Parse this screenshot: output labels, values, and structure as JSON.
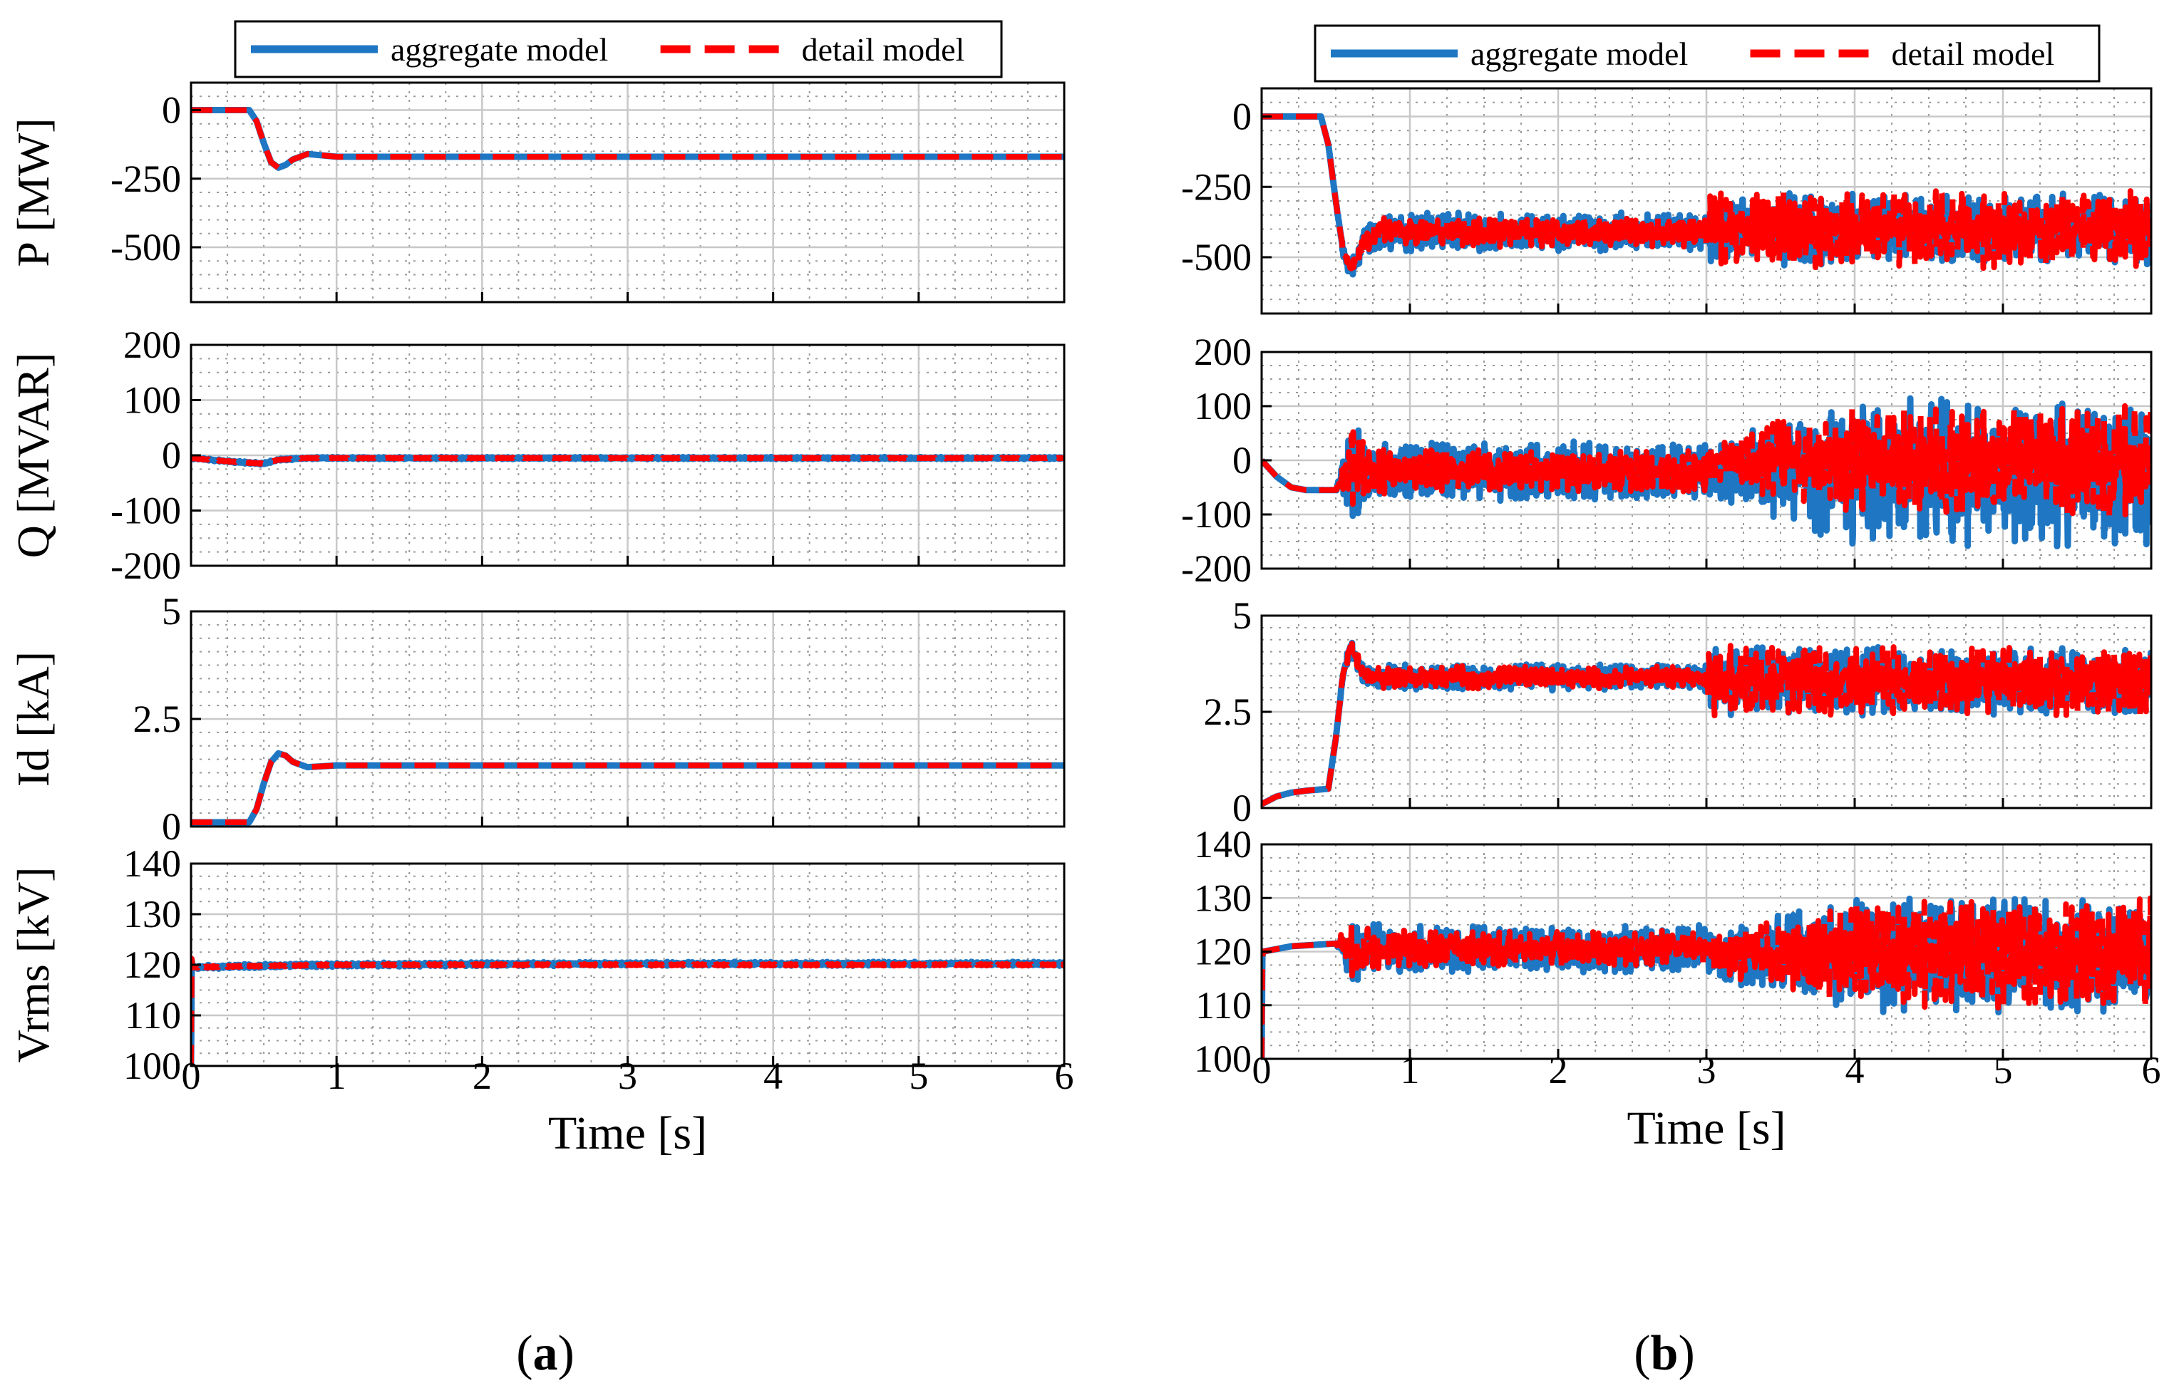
{
  "figure": {
    "panel_labels": [
      "(a)",
      "(b)"
    ],
    "panel_label_letters": [
      "a",
      "b"
    ],
    "colors": {
      "aggregate": "#1f77c4",
      "detail": "#ff0000",
      "grid_major": "#c8c8c8",
      "grid_minor": "#9a9a9a",
      "axis": "#000000"
    }
  },
  "chart_data": [
    {
      "id": "a",
      "type": "line",
      "legend": {
        "placement": "top",
        "entries": [
          "aggregate model",
          "detail model"
        ]
      },
      "xlabel": "Time [s]",
      "xlim": [
        0,
        6
      ],
      "xticks": [
        0,
        1,
        2,
        3,
        4,
        5,
        6
      ],
      "subplots": [
        {
          "ylabel": "P [MW]",
          "ylim": [
            -700,
            100
          ],
          "yticks": [
            0,
            -250,
            -500
          ],
          "ytick_labels": [
            "0",
            "-250",
            "-500"
          ],
          "series": [
            {
              "name": "aggregate model",
              "x": [
                0,
                0.4,
                0.45,
                0.5,
                0.55,
                0.6,
                0.65,
                0.7,
                0.8,
                0.9,
                1.0,
                1.5,
                3,
                4.5,
                6
              ],
              "y": [
                0,
                0,
                -40,
                -120,
                -190,
                -210,
                -200,
                -180,
                -160,
                -165,
                -170,
                -170,
                -170,
                -170,
                -170
              ],
              "noise": 0
            },
            {
              "name": "detail model",
              "x": [
                0,
                0.4,
                0.45,
                0.5,
                0.55,
                0.6,
                0.65,
                0.7,
                0.8,
                0.9,
                1.0,
                1.5,
                3,
                4.5,
                6
              ],
              "y": [
                0,
                0,
                -40,
                -120,
                -190,
                -210,
                -200,
                -180,
                -160,
                -165,
                -170,
                -170,
                -170,
                -170,
                -170
              ],
              "noise": 0
            }
          ]
        },
        {
          "ylabel": "Q [MVAR]",
          "ylim": [
            -200,
            200
          ],
          "yticks": [
            200,
            100,
            0,
            -100,
            -200
          ],
          "ytick_labels": [
            "200",
            "100",
            "0",
            "-100",
            "-200"
          ],
          "series": [
            {
              "name": "aggregate model",
              "x": [
                0,
                0.3,
                0.5,
                0.6,
                0.8,
                1.0,
                3,
                6
              ],
              "y": [
                -5,
                -12,
                -15,
                -8,
                -5,
                -5,
                -5,
                -5
              ],
              "noise": 2
            },
            {
              "name": "detail model",
              "x": [
                0,
                0.3,
                0.5,
                0.6,
                0.8,
                1.0,
                3,
                6
              ],
              "y": [
                -5,
                -12,
                -15,
                -8,
                -5,
                -5,
                -5,
                -5
              ],
              "noise": 1
            }
          ]
        },
        {
          "ylabel": "Id [kA]",
          "ylim": [
            0,
            5
          ],
          "yticks": [
            5,
            2.5,
            0
          ],
          "ytick_labels": [
            "5",
            "2.5",
            "0"
          ],
          "series": [
            {
              "name": "aggregate model",
              "x": [
                0,
                0.4,
                0.45,
                0.5,
                0.55,
                0.6,
                0.65,
                0.7,
                0.8,
                0.9,
                1.0,
                1.5,
                3,
                6
              ],
              "y": [
                0.1,
                0.1,
                0.4,
                1.0,
                1.5,
                1.7,
                1.65,
                1.5,
                1.38,
                1.4,
                1.42,
                1.42,
                1.42,
                1.42
              ],
              "noise": 0
            },
            {
              "name": "detail model",
              "x": [
                0,
                0.4,
                0.45,
                0.5,
                0.55,
                0.6,
                0.65,
                0.7,
                0.8,
                0.9,
                1.0,
                1.5,
                3,
                6
              ],
              "y": [
                0.1,
                0.1,
                0.4,
                1.0,
                1.5,
                1.7,
                1.65,
                1.5,
                1.38,
                1.4,
                1.42,
                1.42,
                1.42,
                1.42
              ],
              "noise": 0
            }
          ]
        },
        {
          "ylabel": "Vrms [kV]",
          "ylim": [
            100,
            140
          ],
          "yticks": [
            140,
            130,
            120,
            110,
            100
          ],
          "ytick_labels": [
            "140",
            "130",
            "120",
            "110",
            "100"
          ],
          "series": [
            {
              "name": "aggregate model",
              "x": [
                0,
                0.005,
                0.01,
                0.3,
                1.0,
                3,
                6
              ],
              "y": [
                100,
                121,
                119.5,
                119.7,
                120,
                120.2,
                120.2
              ],
              "noise": 0.4
            },
            {
              "name": "detail model",
              "x": [
                0,
                0.005,
                0.01,
                0.3,
                1.0,
                3,
                6
              ],
              "y": [
                100,
                121,
                119.5,
                119.7,
                120,
                120,
                120
              ],
              "noise": 0.2
            }
          ]
        }
      ]
    },
    {
      "id": "b",
      "type": "line",
      "legend": {
        "placement": "top",
        "entries": [
          "aggregate model",
          "detail model"
        ]
      },
      "xlabel": "Time [s]",
      "xlim": [
        0,
        6
      ],
      "xticks": [
        0,
        1,
        2,
        3,
        4,
        5,
        6
      ],
      "subplots": [
        {
          "ylabel": "",
          "ylim": [
            -700,
            100
          ],
          "yticks": [
            0,
            -250,
            -500
          ],
          "ytick_labels": [
            "0",
            "-250",
            "-500"
          ],
          "series": [
            {
              "name": "aggregate model",
              "x": [
                0,
                0.4,
                0.45,
                0.5,
                0.55,
                0.6,
                0.65,
                0.7,
                0.8,
                1.0,
                2,
                2.99,
                3.01,
                4,
                5,
                6
              ],
              "y": [
                0,
                0,
                -100,
                -300,
                -480,
                -550,
                -500,
                -430,
                -410,
                -410,
                -410,
                -410,
                -400,
                -400,
                -400,
                -400
              ],
              "noise": [
                0,
                0,
                0,
                0,
                20,
                30,
                40,
                55,
                70,
                70,
                70,
                70,
                130,
                130,
                130,
                130
              ]
            },
            {
              "name": "detail model",
              "x": [
                0,
                0.4,
                0.45,
                0.5,
                0.55,
                0.6,
                0.65,
                0.7,
                0.8,
                1.0,
                2,
                2.99,
                3.01,
                4,
                5,
                6
              ],
              "y": [
                0,
                0,
                -100,
                -300,
                -480,
                -540,
                -490,
                -430,
                -410,
                -410,
                -410,
                -410,
                -400,
                -400,
                -400,
                -400
              ],
              "noise": [
                0,
                0,
                0,
                0,
                15,
                25,
                35,
                45,
                55,
                55,
                55,
                55,
                140,
                140,
                140,
                140
              ]
            }
          ]
        },
        {
          "ylabel": "",
          "ylim": [
            -200,
            200
          ],
          "yticks": [
            200,
            100,
            0,
            -100,
            -200
          ],
          "ytick_labels": [
            "200",
            "100",
            "0",
            "-100",
            "-200"
          ],
          "series": [
            {
              "name": "aggregate model",
              "x": [
                0,
                0.1,
                0.2,
                0.3,
                0.5,
                0.55,
                0.6,
                0.7,
                1.0,
                2,
                2.99,
                3.01,
                4,
                5,
                6
              ],
              "y": [
                0,
                -30,
                -50,
                -55,
                -55,
                -30,
                -10,
                -20,
                -20,
                -20,
                -20,
                -20,
                -20,
                -20,
                -20
              ],
              "noise": [
                0,
                0,
                0,
                0,
                0,
                50,
                110,
                60,
                55,
                55,
                55,
                55,
                140,
                140,
                140
              ]
            },
            {
              "name": "detail model",
              "x": [
                0,
                0.1,
                0.2,
                0.3,
                0.5,
                0.55,
                0.6,
                0.7,
                1.0,
                2,
                2.99,
                3.01,
                4,
                5,
                6
              ],
              "y": [
                0,
                -30,
                -50,
                -55,
                -55,
                -30,
                0,
                -20,
                -20,
                -20,
                -20,
                0,
                0,
                0,
                0
              ],
              "noise": [
                0,
                0,
                0,
                0,
                0,
                40,
                95,
                50,
                40,
                40,
                40,
                40,
                110,
                110,
                110
              ]
            }
          ]
        },
        {
          "ylabel": "",
          "ylim": [
            0,
            5
          ],
          "yticks": [
            5,
            2.5,
            0
          ],
          "ytick_labels": [
            "5",
            "2.5",
            "0"
          ],
          "series": [
            {
              "name": "aggregate model",
              "x": [
                0,
                0.1,
                0.2,
                0.3,
                0.45,
                0.5,
                0.55,
                0.6,
                0.65,
                0.7,
                0.8,
                1.0,
                2,
                2.99,
                3.01,
                4,
                5,
                6
              ],
              "y": [
                0.1,
                0.3,
                0.4,
                0.45,
                0.5,
                1.8,
                3.5,
                4.2,
                3.8,
                3.4,
                3.4,
                3.4,
                3.4,
                3.4,
                3.3,
                3.3,
                3.3,
                3.3
              ],
              "noise": [
                0,
                0,
                0,
                0,
                0,
                0,
                0.1,
                0.2,
                0.25,
                0.3,
                0.35,
                0.35,
                0.35,
                0.35,
                0.9,
                0.9,
                0.9,
                0.9
              ]
            },
            {
              "name": "detail model",
              "x": [
                0,
                0.1,
                0.2,
                0.3,
                0.45,
                0.5,
                0.55,
                0.6,
                0.65,
                0.7,
                0.8,
                1.0,
                2,
                2.99,
                3.01,
                4,
                5,
                6
              ],
              "y": [
                0.1,
                0.3,
                0.4,
                0.45,
                0.5,
                1.8,
                3.5,
                4.2,
                3.8,
                3.4,
                3.4,
                3.4,
                3.4,
                3.4,
                3.3,
                3.3,
                3.3,
                3.3
              ],
              "noise": [
                0,
                0,
                0,
                0,
                0,
                0,
                0.1,
                0.2,
                0.25,
                0.25,
                0.3,
                0.3,
                0.3,
                0.3,
                0.95,
                0.95,
                0.95,
                0.95
              ]
            }
          ]
        },
        {
          "ylabel": "",
          "ylim": [
            100,
            140
          ],
          "yticks": [
            140,
            130,
            120,
            110,
            100
          ],
          "ytick_labels": [
            "140",
            "130",
            "120",
            "110",
            "100"
          ],
          "series": [
            {
              "name": "aggregate model",
              "x": [
                0,
                0.005,
                0.01,
                0.2,
                0.5,
                0.55,
                0.6,
                0.7,
                1.0,
                2,
                2.99,
                3.01,
                4,
                5,
                6
              ],
              "y": [
                100,
                119,
                120,
                121,
                121.5,
                121,
                120,
                120.5,
                120.5,
                120.5,
                120.5,
                119.5,
                119.5,
                119.5,
                119.5
              ],
              "noise": [
                0,
                0,
                0,
                0,
                0,
                3,
                6,
                5,
                4.5,
                4.5,
                4.5,
                4.5,
                11,
                11,
                11
              ]
            },
            {
              "name": "detail model",
              "x": [
                0,
                0.005,
                0.01,
                0.2,
                0.5,
                0.55,
                0.6,
                0.7,
                1.0,
                2,
                2.99,
                3.01,
                4,
                5,
                6
              ],
              "y": [
                100,
                119,
                120,
                121,
                121.5,
                121,
                120,
                120.5,
                120.5,
                120.5,
                120.5,
                119.5,
                119.5,
                119.5,
                119.5
              ],
              "noise": [
                0,
                0,
                0,
                0,
                0,
                3,
                6,
                4,
                3.5,
                3.5,
                3.5,
                3.5,
                10.5,
                10.5,
                10.5
              ]
            }
          ]
        }
      ]
    }
  ]
}
